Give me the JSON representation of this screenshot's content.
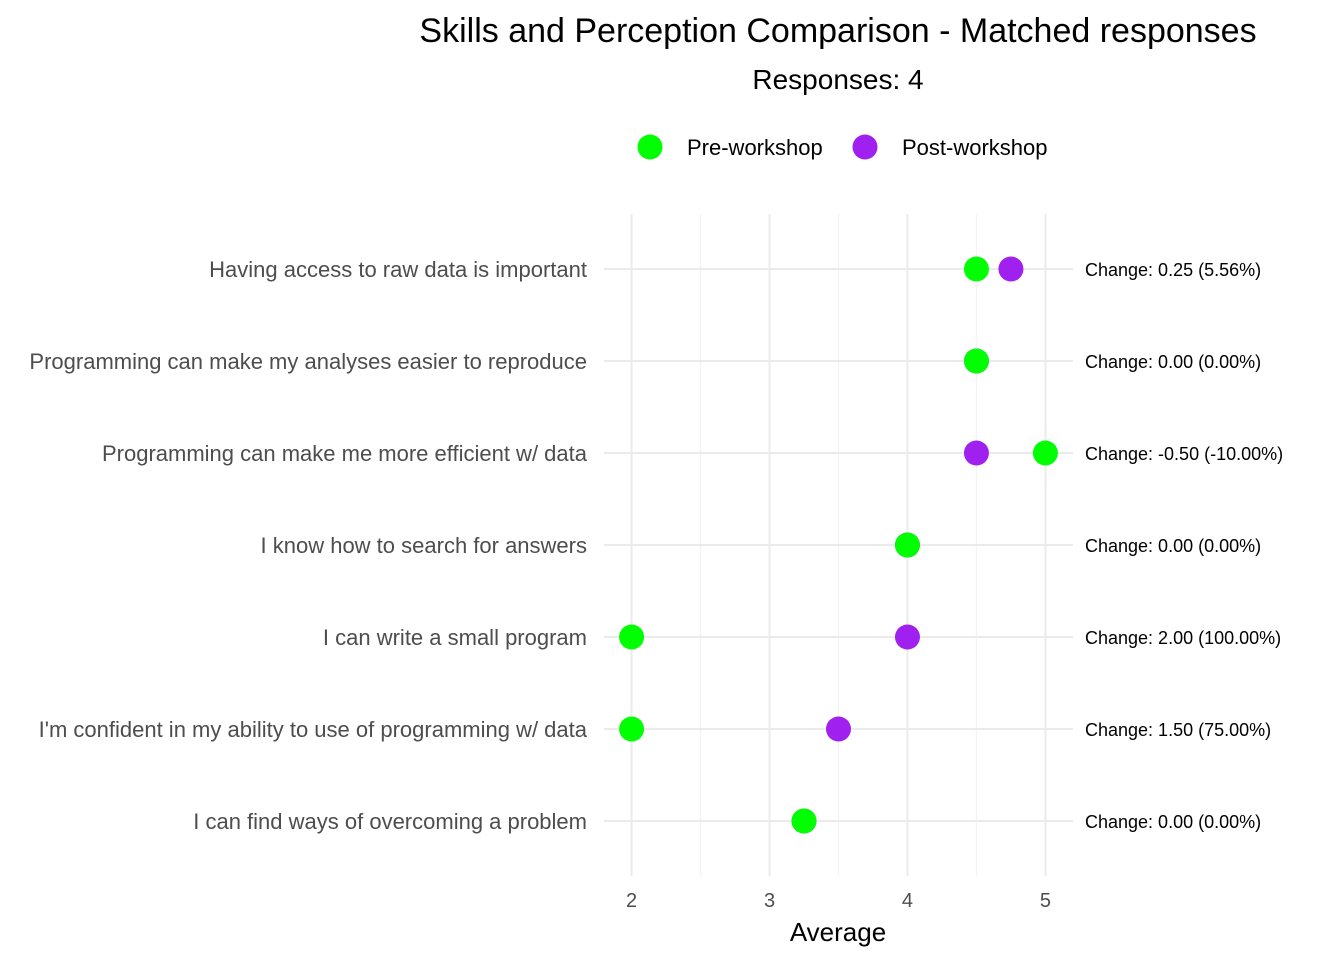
{
  "chart_data": {
    "type": "scatter",
    "title": "Skills and Perception Comparison - Matched responses",
    "subtitle": "Responses: 4",
    "xlabel": "Average",
    "ylabel": "",
    "xlim": [
      1.8,
      5.2
    ],
    "x_ticks": [
      "2",
      "3",
      "4",
      "5"
    ],
    "grid": true,
    "legend_position": "top",
    "categories": [
      "Having access to raw data is important",
      "Programming can make my analyses easier to reproduce",
      "Programming can make me more efficient w/ data",
      "I know how to search for answers",
      "I can write a small program",
      "I'm confident in my ability to use of programming w/ data",
      "I can find ways of overcoming a problem"
    ],
    "series": [
      {
        "name": "Pre-workshop",
        "color": "#00ff00",
        "values": [
          4.5,
          4.5,
          5.0,
          4.0,
          2.0,
          2.0,
          3.25
        ]
      },
      {
        "name": "Post-workshop",
        "color": "#a020f0",
        "values": [
          4.75,
          4.5,
          4.5,
          4.0,
          4.0,
          3.5,
          3.25
        ]
      }
    ],
    "annotations": [
      "Change: 0.25 (5.56%)",
      "Change: 0.00 (0.00%)",
      "Change: -0.50 (-10.00%)",
      "Change: 0.00 (0.00%)",
      "Change: 2.00 (100.00%)",
      "Change: 1.50 (75.00%)",
      "Change: 0.00 (0.00%)"
    ]
  }
}
